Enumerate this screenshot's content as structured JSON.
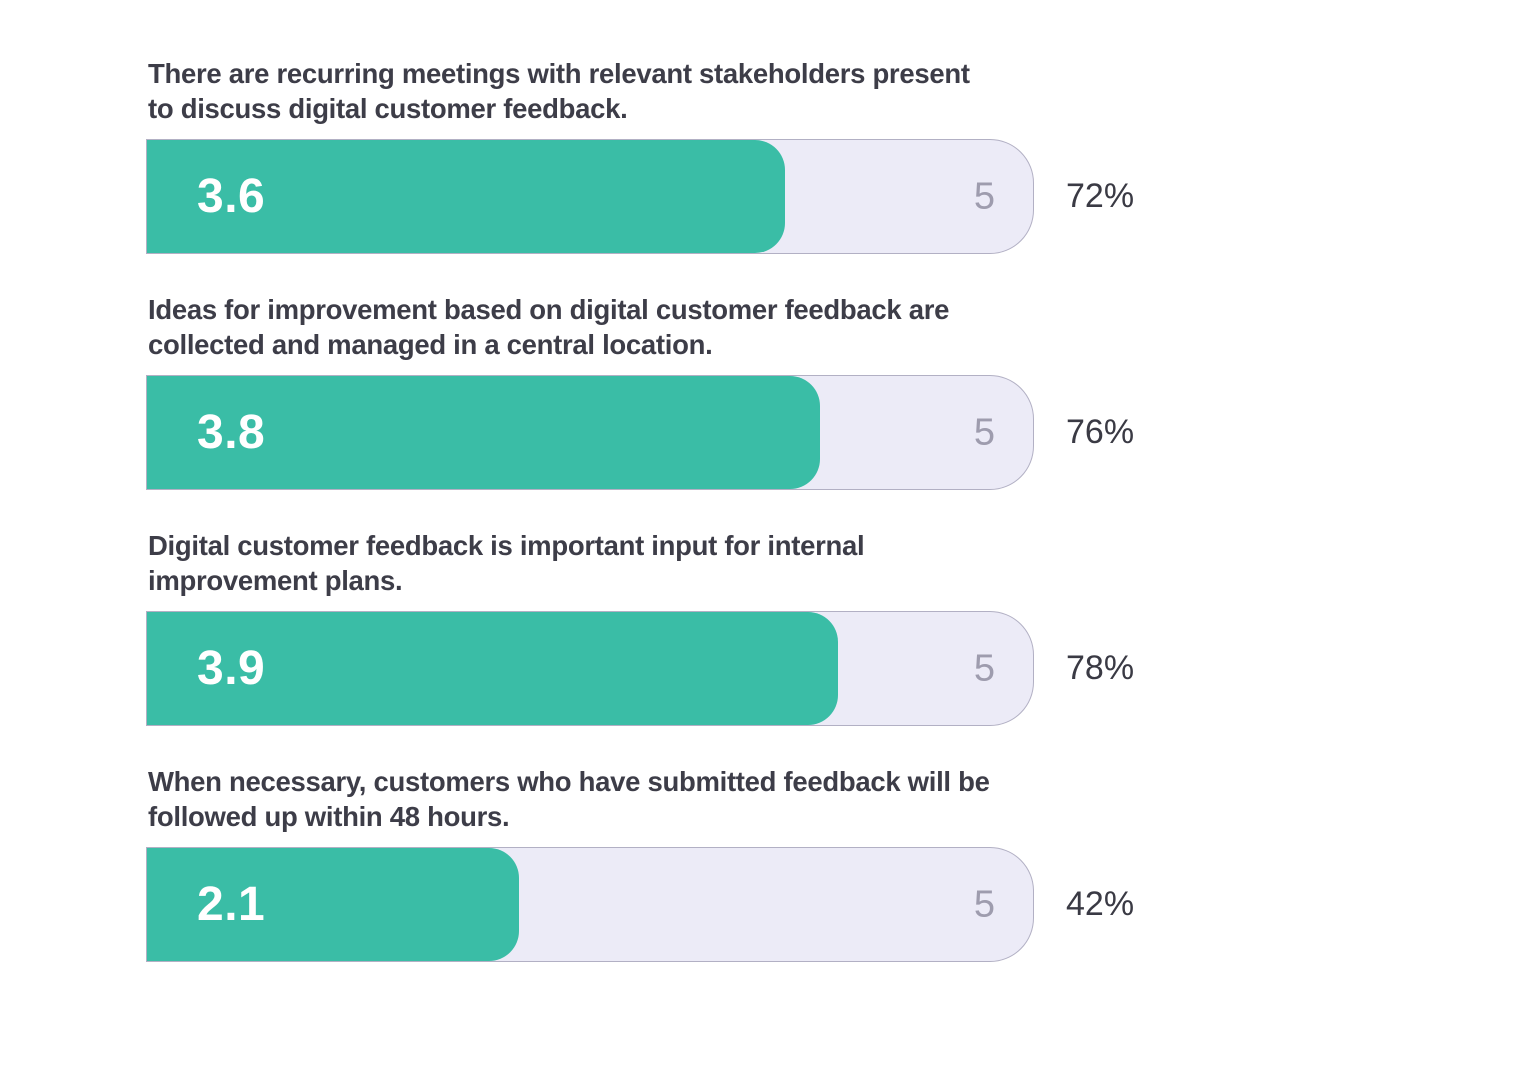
{
  "chart_data": {
    "type": "bar",
    "orientation": "horizontal",
    "scale_max": 5,
    "grid": false,
    "legend": false,
    "rows": [
      {
        "label": "There are recurring meetings with relevant stakeholders present\nto discuss digital customer feedback.",
        "value": 3.6,
        "value_label": "3.6",
        "scale_label": "5",
        "percent_label": "72%"
      },
      {
        "label": "Ideas for improvement based on digital customer feedback are\ncollected and managed in a central location.",
        "value": 3.8,
        "value_label": "3.8",
        "scale_label": "5",
        "percent_label": "76%"
      },
      {
        "label": "Digital customer feedback is important input for internal\nimprovement plans.",
        "value": 3.9,
        "value_label": "3.9",
        "scale_label": "5",
        "percent_label": "78%"
      },
      {
        "label": "When necessary, customers who have submitted feedback will be\nfollowed up within 48 hours.",
        "value": 2.1,
        "value_label": "2.1",
        "scale_label": "5",
        "percent_label": "42%"
      }
    ],
    "colors": {
      "fill": "#3abda6",
      "track": "#ecebf7",
      "track_border": "#b2b0c4",
      "max_label": "#9e9cae",
      "text": "#3d3d48",
      "pct_text": "#3a3a44"
    }
  }
}
